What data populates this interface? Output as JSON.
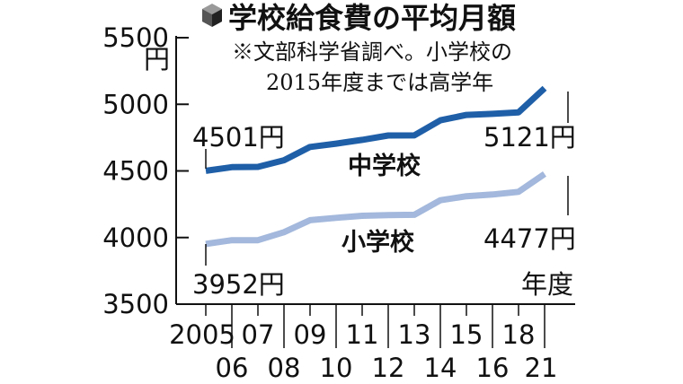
{
  "chart_data": {
    "type": "line",
    "title": "学校給食費の平均月額",
    "note_lines": [
      "※文部科学省調べ。小学校の",
      "2015年度までは高学年"
    ],
    "y_unit": "円",
    "x_unit": "年度",
    "ylim": [
      3500,
      5500
    ],
    "yticks": [
      "3500",
      "4000",
      "4500",
      "5000",
      "5500"
    ],
    "x": [
      2005,
      2006,
      2007,
      2008,
      2009,
      2010,
      2011,
      2012,
      2013,
      2014,
      2015,
      2016,
      2018,
      2021
    ],
    "xtick_labels": [
      "2005",
      "06",
      "07",
      "08",
      "09",
      "10",
      "11",
      "12",
      "13",
      "14",
      "15",
      "16",
      "18",
      "21"
    ],
    "series": [
      {
        "name": "中学校",
        "color": "#1f5fa8",
        "values": [
          4501,
          4528,
          4530,
          4580,
          4680,
          4705,
          4733,
          4766,
          4767,
          4880,
          4920,
          4928,
          4940,
          5121
        ]
      },
      {
        "name": "小学校",
        "color": "#a3b8dc",
        "values": [
          3952,
          3980,
          3980,
          4040,
          4130,
          4148,
          4163,
          4168,
          4171,
          4280,
          4310,
          4323,
          4343,
          4477
        ]
      }
    ],
    "labels": {
      "jr_start": "4501円",
      "el_start": "3952円",
      "jr_end": "5121円",
      "el_end": "4477円"
    },
    "grid": false
  }
}
